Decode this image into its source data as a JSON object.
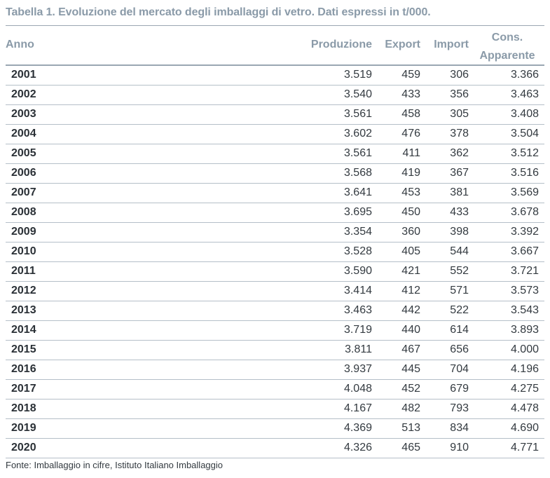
{
  "title": "Tabella 1. Evoluzione del mercato degli imballaggi di vetro. Dati espressi in t/000.",
  "columns": {
    "anno": "Anno",
    "produzione": "Produzione",
    "export": "Export",
    "import": "Import",
    "cons_line1": "Cons.",
    "cons_line2": "Apparente"
  },
  "rows": [
    {
      "anno": "2001",
      "produzione": "3.519",
      "export": "459",
      "import": "306",
      "cons": "3.366"
    },
    {
      "anno": "2002",
      "produzione": "3.540",
      "export": "433",
      "import": "356",
      "cons": "3.463"
    },
    {
      "anno": "2003",
      "produzione": "3.561",
      "export": "458",
      "import": "305",
      "cons": "3.408"
    },
    {
      "anno": "2004",
      "produzione": "3.602",
      "export": "476",
      "import": "378",
      "cons": "3.504"
    },
    {
      "anno": "2005",
      "produzione": "3.561",
      "export": "411",
      "import": "362",
      "cons": "3.512"
    },
    {
      "anno": "2006",
      "produzione": "3.568",
      "export": "419",
      "import": "367",
      "cons": "3.516"
    },
    {
      "anno": "2007",
      "produzione": "3.641",
      "export": "453",
      "import": "381",
      "cons": "3.569"
    },
    {
      "anno": "2008",
      "produzione": "3.695",
      "export": "450",
      "import": "433",
      "cons": "3.678"
    },
    {
      "anno": "2009",
      "produzione": "3.354",
      "export": "360",
      "import": "398",
      "cons": "3.392"
    },
    {
      "anno": "2010",
      "produzione": "3.528",
      "export": "405",
      "import": "544",
      "cons": "3.667"
    },
    {
      "anno": "2011",
      "produzione": "3.590",
      "export": "421",
      "import": "552",
      "cons": "3.721"
    },
    {
      "anno": "2012",
      "produzione": "3.414",
      "export": "412",
      "import": "571",
      "cons": "3.573"
    },
    {
      "anno": "2013",
      "produzione": "3.463",
      "export": "442",
      "import": "522",
      "cons": "3.543"
    },
    {
      "anno": "2014",
      "produzione": "3.719",
      "export": "440",
      "import": "614",
      "cons": "3.893"
    },
    {
      "anno": "2015",
      "produzione": "3.811",
      "export": "467",
      "import": "656",
      "cons": "4.000"
    },
    {
      "anno": "2016",
      "produzione": "3.937",
      "export": "445",
      "import": "704",
      "cons": "4.196"
    },
    {
      "anno": "2017",
      "produzione": "4.048",
      "export": "452",
      "import": "679",
      "cons": "4.275"
    },
    {
      "anno": "2018",
      "produzione": "4.167",
      "export": "482",
      "import": "793",
      "cons": "4.478"
    },
    {
      "anno": "2019",
      "produzione": "4.369",
      "export": "513",
      "import": "834",
      "cons": "4.690"
    },
    {
      "anno": "2020",
      "produzione": "4.326",
      "export": "465",
      "import": "910",
      "cons": "4.771"
    }
  ],
  "source": "Fonte: Imballaggio in cifre, Istituto Italiano Imballaggio",
  "colors": {
    "header_text": "#8a9aa8",
    "rule": "#9aa7b2",
    "body_text": "#333a40"
  }
}
